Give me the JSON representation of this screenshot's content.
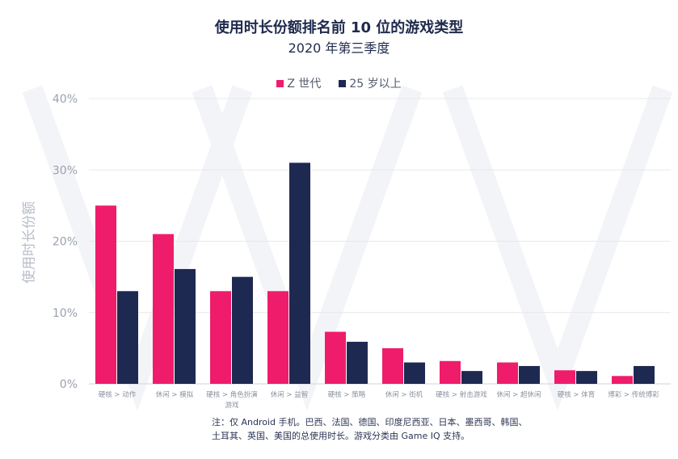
{
  "chart_data": {
    "type": "bar",
    "title": "使用时长份额排名前 10 位的游戏类型",
    "subtitle": "2020 年第三季度",
    "ylabel": "使用时长份额",
    "xlabel": "",
    "ylim": [
      0,
      40
    ],
    "yticks": [
      "0%",
      "10%",
      "20%",
      "30%",
      "40%"
    ],
    "ytick_values": [
      0,
      10,
      20,
      30,
      40
    ],
    "grid": true,
    "legend_position": "top-center",
    "categories": [
      [
        "硬核 > 动作"
      ],
      [
        "休闲 > 模拟"
      ],
      [
        "硬核 > 角色扮演",
        "游戏"
      ],
      [
        "休闲 > 益智"
      ],
      [
        "硬核 > 策略"
      ],
      [
        "休闲 > 街机"
      ],
      [
        "硬核 > 射击游戏"
      ],
      [
        "休闲 > 超休闲"
      ],
      [
        "硬核 > 体育"
      ],
      [
        "博彩 > 传统博彩"
      ]
    ],
    "series": [
      {
        "name": "Z 世代",
        "color": "#ef1c6b",
        "values": [
          25,
          21,
          13,
          13,
          7.3,
          5,
          3.2,
          3,
          1.9,
          1.1
        ]
      },
      {
        "name": "25 岁以上",
        "color": "#1e2952",
        "values": [
          13,
          16.1,
          15,
          31,
          5.9,
          3,
          1.8,
          2.5,
          1.8,
          2.5
        ]
      }
    ]
  },
  "note": [
    "注：仅 Android 手机。巴西、法国、德国、印度尼西亚、日本、墨西哥、韩国、",
    "土耳其、英国、美国的总使用时长。游戏分类由 Game IQ 支持。"
  ],
  "colors": {
    "accent_pink": "#ef1c6b",
    "navy": "#1e2952",
    "grid": "#e6e8ee",
    "tick_text": "#9aa0ae"
  }
}
